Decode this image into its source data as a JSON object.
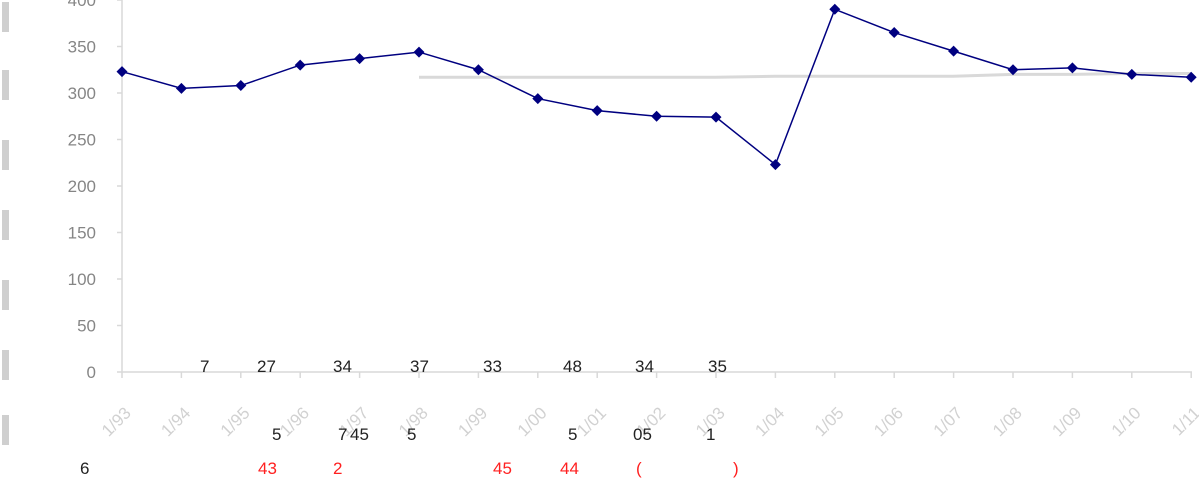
{
  "chart_data": {
    "type": "line",
    "categories": [
      "1/93",
      "1/94",
      "1/95",
      "1/96",
      "1/97",
      "1/98",
      "1/99",
      "1/00",
      "1/01",
      "1/02",
      "1/03",
      "1/04",
      "1/05",
      "1/06",
      "1/07",
      "1/08",
      "1/09",
      "1/10",
      "1/11"
    ],
    "series": [
      {
        "values": [
          323,
          305,
          308,
          330,
          337,
          344,
          325,
          294,
          281,
          275,
          274,
          223,
          390,
          365,
          345,
          325,
          327,
          320,
          317
        ],
        "color": "#000080",
        "marker": "diamond"
      }
    ],
    "reference_line": {
      "values": [
        null,
        null,
        null,
        null,
        null,
        317,
        317,
        317,
        317,
        317,
        317,
        318,
        318,
        318,
        318,
        320,
        320,
        321,
        321
      ],
      "color": "#d9d9d9"
    },
    "y_ticks": [
      "0",
      "50",
      "100",
      "150",
      "200",
      "250",
      "300",
      "350",
      "400"
    ],
    "ylim": [
      0,
      400
    ],
    "grid": false,
    "fragments": {
      "top_row": [
        "7",
        "27",
        "34",
        "37",
        "33",
        "48",
        "34",
        "35"
      ],
      "mid_row": [
        "5",
        "7",
        "45",
        "5",
        "5",
        "05",
        "1"
      ],
      "bottom_left": "6",
      "red_row": [
        "43",
        "2",
        "45",
        "44",
        "(",
        ")"
      ]
    },
    "colors": {
      "axis": "#d9d9d9",
      "series": "#000080",
      "reference": "#d9d9d9",
      "red_text": "#ff2020"
    }
  }
}
